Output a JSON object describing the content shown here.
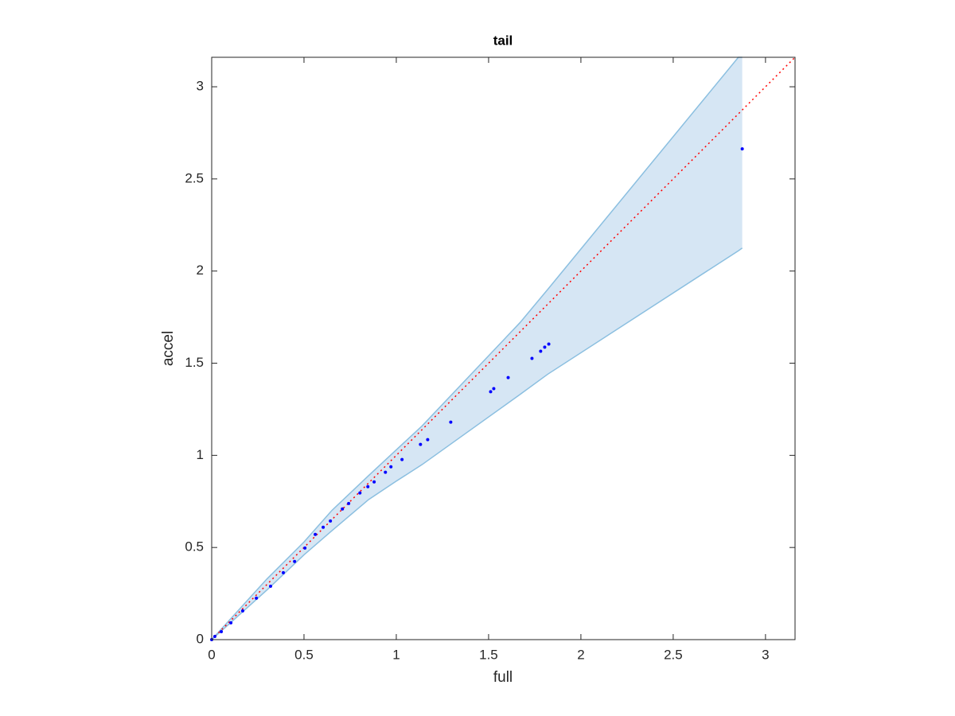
{
  "chart_data": {
    "type": "scatter",
    "title": "tail",
    "xlabel": "full",
    "ylabel": "accel",
    "x": [
      0,
      0.017,
      0.052,
      0.104,
      0.168,
      0.242,
      0.319,
      0.388,
      0.449,
      0.505,
      0.561,
      0.604,
      0.643,
      0.708,
      0.742,
      0.803,
      0.846,
      0.88,
      0.941,
      0.971,
      1.031,
      1.131,
      1.17,
      1.295,
      1.511,
      1.528,
      1.606,
      1.735,
      1.782,
      1.804,
      1.826,
      2.874
    ],
    "values": [
      0,
      0.017,
      0.043,
      0.091,
      0.156,
      0.225,
      0.29,
      0.363,
      0.424,
      0.497,
      0.571,
      0.61,
      0.644,
      0.709,
      0.739,
      0.796,
      0.83,
      0.856,
      0.908,
      0.938,
      0.977,
      1.059,
      1.085,
      1.18,
      1.345,
      1.362,
      1.422,
      1.526,
      1.565,
      1.587,
      1.604,
      2.663
    ],
    "color": "#0000ff",
    "band": {
      "x": [
        0,
        0.1,
        0.2,
        0.3,
        0.5,
        0.65,
        0.85,
        1.0,
        1.14,
        1.67,
        1.82,
        2.853,
        2.874
      ],
      "upper": [
        0,
        0.11,
        0.22,
        0.33,
        0.53,
        0.7,
        0.89,
        1.03,
        1.16,
        1.72,
        1.9,
        3.16,
        3.16
      ],
      "lower": [
        0,
        0.09,
        0.18,
        0.27,
        0.46,
        0.59,
        0.76,
        0.86,
        0.95,
        1.33,
        1.44,
        2.11,
        2.125
      ],
      "color": "#8bbfe0",
      "fill": "#d6e6f4"
    },
    "reference": {
      "x": [
        0,
        3.16
      ],
      "y": [
        0,
        3.16
      ],
      "color": "#ff0000"
    },
    "xlim": [
      0,
      3.16
    ],
    "ylim": [
      0,
      3.16
    ],
    "xticks": [
      0,
      0.5,
      1,
      1.5,
      2,
      2.5,
      3
    ],
    "yticks": [
      0,
      0.5,
      1,
      1.5,
      2,
      2.5,
      3
    ]
  }
}
